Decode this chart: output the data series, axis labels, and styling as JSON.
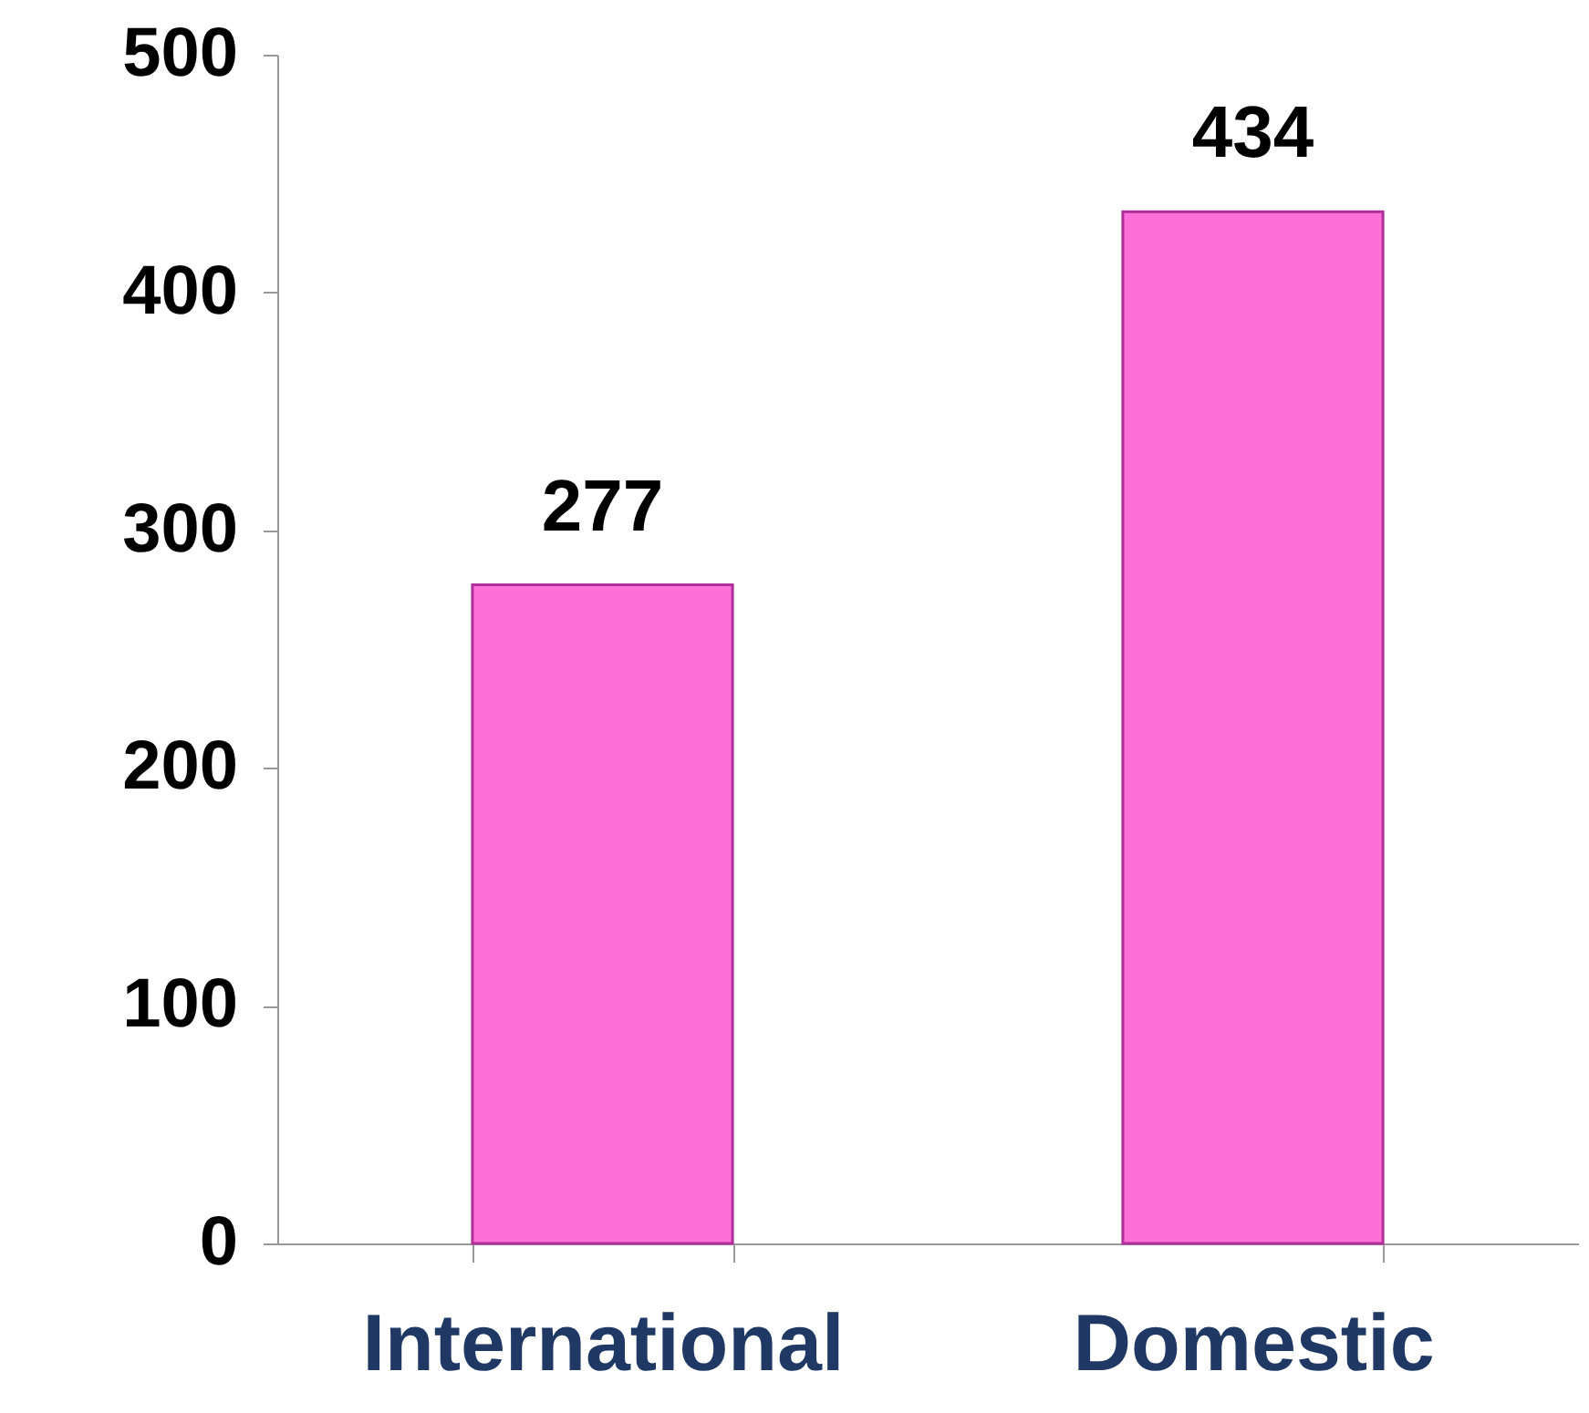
{
  "chart_data": {
    "type": "bar",
    "categories": [
      "International",
      "Domestic"
    ],
    "values": [
      277,
      434
    ],
    "color": "#ff6fd8",
    "ylim": [
      0,
      500
    ],
    "yticks": [
      0,
      100,
      200,
      300,
      400,
      500
    ],
    "grid": false,
    "data_labels": true
  }
}
